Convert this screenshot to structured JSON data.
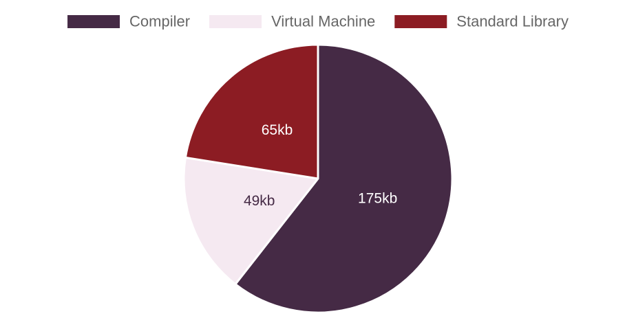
{
  "chart_data": {
    "type": "pie",
    "title": "",
    "categories": [
      "Compiler",
      "Virtual Machine",
      "Standard Library"
    ],
    "values": [
      175,
      49,
      65
    ],
    "labels": [
      "175kb",
      "49kb",
      "65kb"
    ],
    "unit": "kb",
    "colors": [
      "#452A45",
      "#F5E9F1",
      "#8C1C23"
    ],
    "label_colors": [
      "#ffffff",
      "#452A45",
      "#ffffff"
    ],
    "border_color": "#ffffff",
    "legend_position": "top",
    "start_angle": "12 o'clock",
    "direction": "clockwise"
  }
}
